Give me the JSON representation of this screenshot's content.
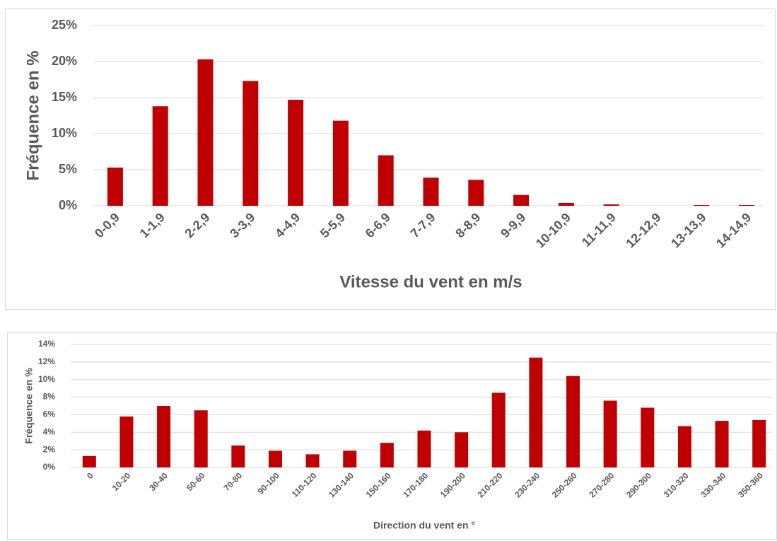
{
  "chart_data": [
    {
      "type": "bar",
      "color": "#c00000",
      "grid": true,
      "x_label": "Vitesse du vent en m/s",
      "y_label": "Fréquence en %",
      "categories": [
        "0-0,9",
        "1-1,9",
        "2-2,9",
        "3-3,9",
        "4-4,9",
        "5-5,9",
        "6-6,9",
        "7-7,9",
        "8-8,9",
        "9-9,9",
        "10-10,9",
        "11-11,9",
        "12-12,9",
        "13-13,9",
        "14-14,9"
      ],
      "values": [
        5.3,
        13.8,
        20.3,
        17.3,
        14.7,
        11.8,
        7.0,
        3.9,
        3.6,
        1.5,
        0.4,
        0.2,
        0,
        0.1,
        0.1
      ],
      "ylim": [
        0,
        25
      ],
      "yticks": [
        {
          "value": 0,
          "label": "0%"
        },
        {
          "value": 5,
          "label": "5%"
        },
        {
          "value": 10,
          "label": "10%"
        },
        {
          "value": 15,
          "label": "15%"
        },
        {
          "value": 20,
          "label": "20%"
        },
        {
          "value": 25,
          "label": "25%"
        }
      ]
    },
    {
      "type": "bar",
      "color": "#c00000",
      "grid": true,
      "x_label": "Direction du vent en °",
      "y_label": "Fréquence en %",
      "categories": [
        "0",
        "10-20",
        "30-40",
        "50-60",
        "70-80",
        "90-100",
        "110-120",
        "130-140",
        "150-160",
        "170-180",
        "190-200",
        "210-220",
        "230-240",
        "250-260",
        "270-280",
        "290-300",
        "310-320",
        "330-340",
        "350-360"
      ],
      "values": [
        1.3,
        5.8,
        7.0,
        6.5,
        2.5,
        1.9,
        1.5,
        1.9,
        2.8,
        4.2,
        4.0,
        8.5,
        12.5,
        10.4,
        7.6,
        6.8,
        4.7,
        5.3,
        5.4
      ],
      "ylim": [
        0,
        14
      ],
      "yticks": [
        {
          "value": 0,
          "label": "0%"
        },
        {
          "value": 2,
          "label": "2%"
        },
        {
          "value": 4,
          "label": "4%"
        },
        {
          "value": 6,
          "label": "6%"
        },
        {
          "value": 8,
          "label": "8%"
        },
        {
          "value": 10,
          "label": "10%"
        },
        {
          "value": 12,
          "label": "12%"
        },
        {
          "value": 14,
          "label": "14%"
        }
      ]
    }
  ]
}
